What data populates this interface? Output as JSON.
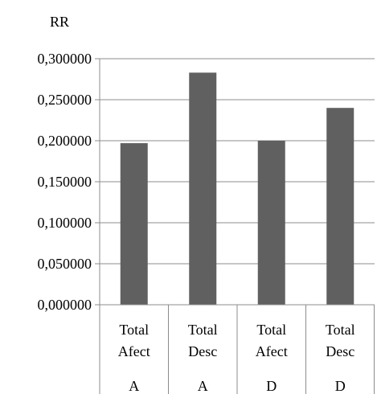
{
  "chart_data": {
    "type": "bar",
    "ylabel": "RR",
    "xlabel": "",
    "title": "",
    "ylim": [
      0,
      0.3
    ],
    "yticks": [
      "0,000000",
      "0,050000",
      "0,100000",
      "0,150000",
      "0,200000",
      "0,250000",
      "0,300000"
    ],
    "grid": true,
    "categories": [
      {
        "line1": "Total",
        "line2": "Afect",
        "group": "A"
      },
      {
        "line1": "Total",
        "line2": "Desc",
        "group": "A"
      },
      {
        "line1": "Total",
        "line2": "Afect",
        "group": "D"
      },
      {
        "line1": "Total",
        "line2": "Desc",
        "group": "D"
      }
    ],
    "values": [
      0.197,
      0.283,
      0.2,
      0.24
    ],
    "bar_color": "#606060"
  }
}
